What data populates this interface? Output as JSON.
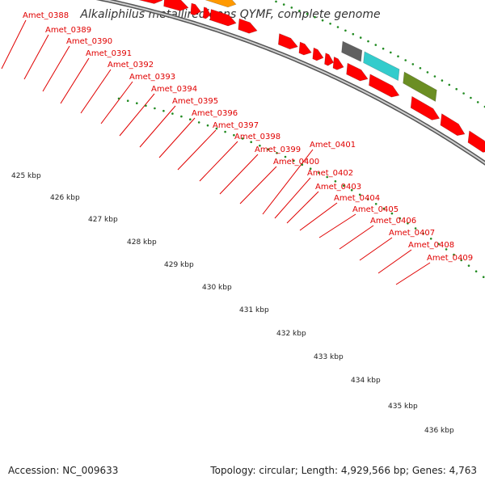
{
  "title": "Alkaliphilus metalliredigens QYMF, complete genome",
  "accession": "Accession: NC_009633",
  "topology": "Topology: circular; Length: 4,929,566 bp; Genes: 4,763",
  "colors": {
    "gene_red": "#ff0000",
    "gene_pink": "#ff3fb3",
    "gene_gray": "#c0c0c0",
    "gene_orange": "#ff9900",
    "gene_dark_gray": "#606060",
    "gene_cyan": "#33cccc",
    "gene_olive": "#6b8e23",
    "tick_green": "#228b22",
    "backbone": "#888888"
  },
  "gene_labels": [
    "Amet_0388",
    "Amet_0389",
    "Amet_0390",
    "Amet_0391",
    "Amet_0392",
    "Amet_0393",
    "Amet_0394",
    "Amet_0395",
    "Amet_0396",
    "Amet_0397",
    "Amet_0398",
    "Amet_0399",
    "Amet_0400",
    "Amet_0401",
    "Amet_0402",
    "Amet_0403",
    "Amet_0404",
    "Amet_0405",
    "Amet_0406",
    "Amet_0407",
    "Amet_0408",
    "Amet_0409"
  ],
  "scale_labels": [
    "425 kbp",
    "426 kbp",
    "427 kbp",
    "428 kbp",
    "429 kbp",
    "430 kbp",
    "431 kbp",
    "432 kbp",
    "433 kbp",
    "434 kbp",
    "435 kbp",
    "436 kbp"
  ]
}
